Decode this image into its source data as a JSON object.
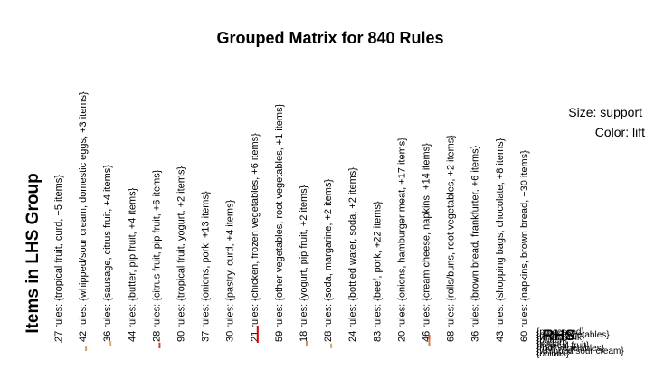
{
  "chart_data": {
    "type": "grouped-matrix",
    "title": "Grouped Matrix for 840 Rules",
    "xlabel": "Items in LHS Group",
    "rhs_label": "RHS",
    "legend": {
      "size": "Size: support",
      "color": "Color: lift"
    },
    "lhs_groups": [
      "27 rules: {tropical fruit, curd, +5 items}",
      "42 rules: {whipped/sour cream, domestic eggs, +3 items}",
      "36 rules: {sausage, citrus fruit, +4 items}",
      "44 rules: {butter, pip fruit, +4 items}",
      "28 rules: {citrus fruit, pip fruit, +6 items}",
      "90 rules: {tropical fruit, yogurt, +2 items}",
      "37 rules: {onions, pork, +13 items}",
      "30 rules: {pastry, curd, +4 items}",
      "21 rules: {chicken, frozen vegetables, +6 items}",
      "59 rules: {other vegetables, root vegetables, +1 items}",
      "18 rules: {yogurt, pip fruit, +2 items}",
      "28 rules: {soda, margarine, +2 items}",
      "24 rules: {bottled water, soda, +2 items}",
      "83 rules: {beef, pork, +22 items}",
      "20 rules: {onions, hamburger meat, +17 items}",
      "46 rules: {cream cheese, napkins, +14 items}",
      "68 rules: {rolls/buns, root vegetables, +2 items}",
      "36 rules: {brown bread, frankfurter, +6 items}",
      "43 rules: {shopping bags, chocolate, +8 items}",
      "60 rules: {napkins, brown bread, +30 items}"
    ],
    "rhs_items": [
      "{processed}",
      "{other vegetables}",
      "{whole milk}",
      "{butter}",
      "{yogurt}",
      "{tropical fruit}",
      "{root vegetables}",
      "{whipped/sour cream}",
      "{onions}"
    ],
    "marks": [
      {
        "lhs": 1,
        "rhs": 2,
        "support": 0.0025,
        "lift": 3.0
      },
      {
        "lhs": 2,
        "rhs": 5,
        "support": 0.0012,
        "lift": 2.6
      },
      {
        "lhs": 3,
        "rhs": 3,
        "support": 0.0012,
        "lift": 2.5
      },
      {
        "lhs": 5,
        "rhs": 4,
        "support": 0.002,
        "lift": 3.2
      },
      {
        "lhs": 9,
        "rhs": 2,
        "support": 0.01,
        "lift": 3.6
      },
      {
        "lhs": 11,
        "rhs": 3,
        "support": 0.0014,
        "lift": 2.7
      },
      {
        "lhs": 12,
        "rhs": 4,
        "support": 0.0014,
        "lift": 2.5
      },
      {
        "lhs": 16,
        "rhs": 1,
        "support": 0.002,
        "lift": 3.0
      },
      {
        "lhs": 16,
        "rhs": 3,
        "support": 0.0018,
        "lift": 2.8
      }
    ]
  }
}
